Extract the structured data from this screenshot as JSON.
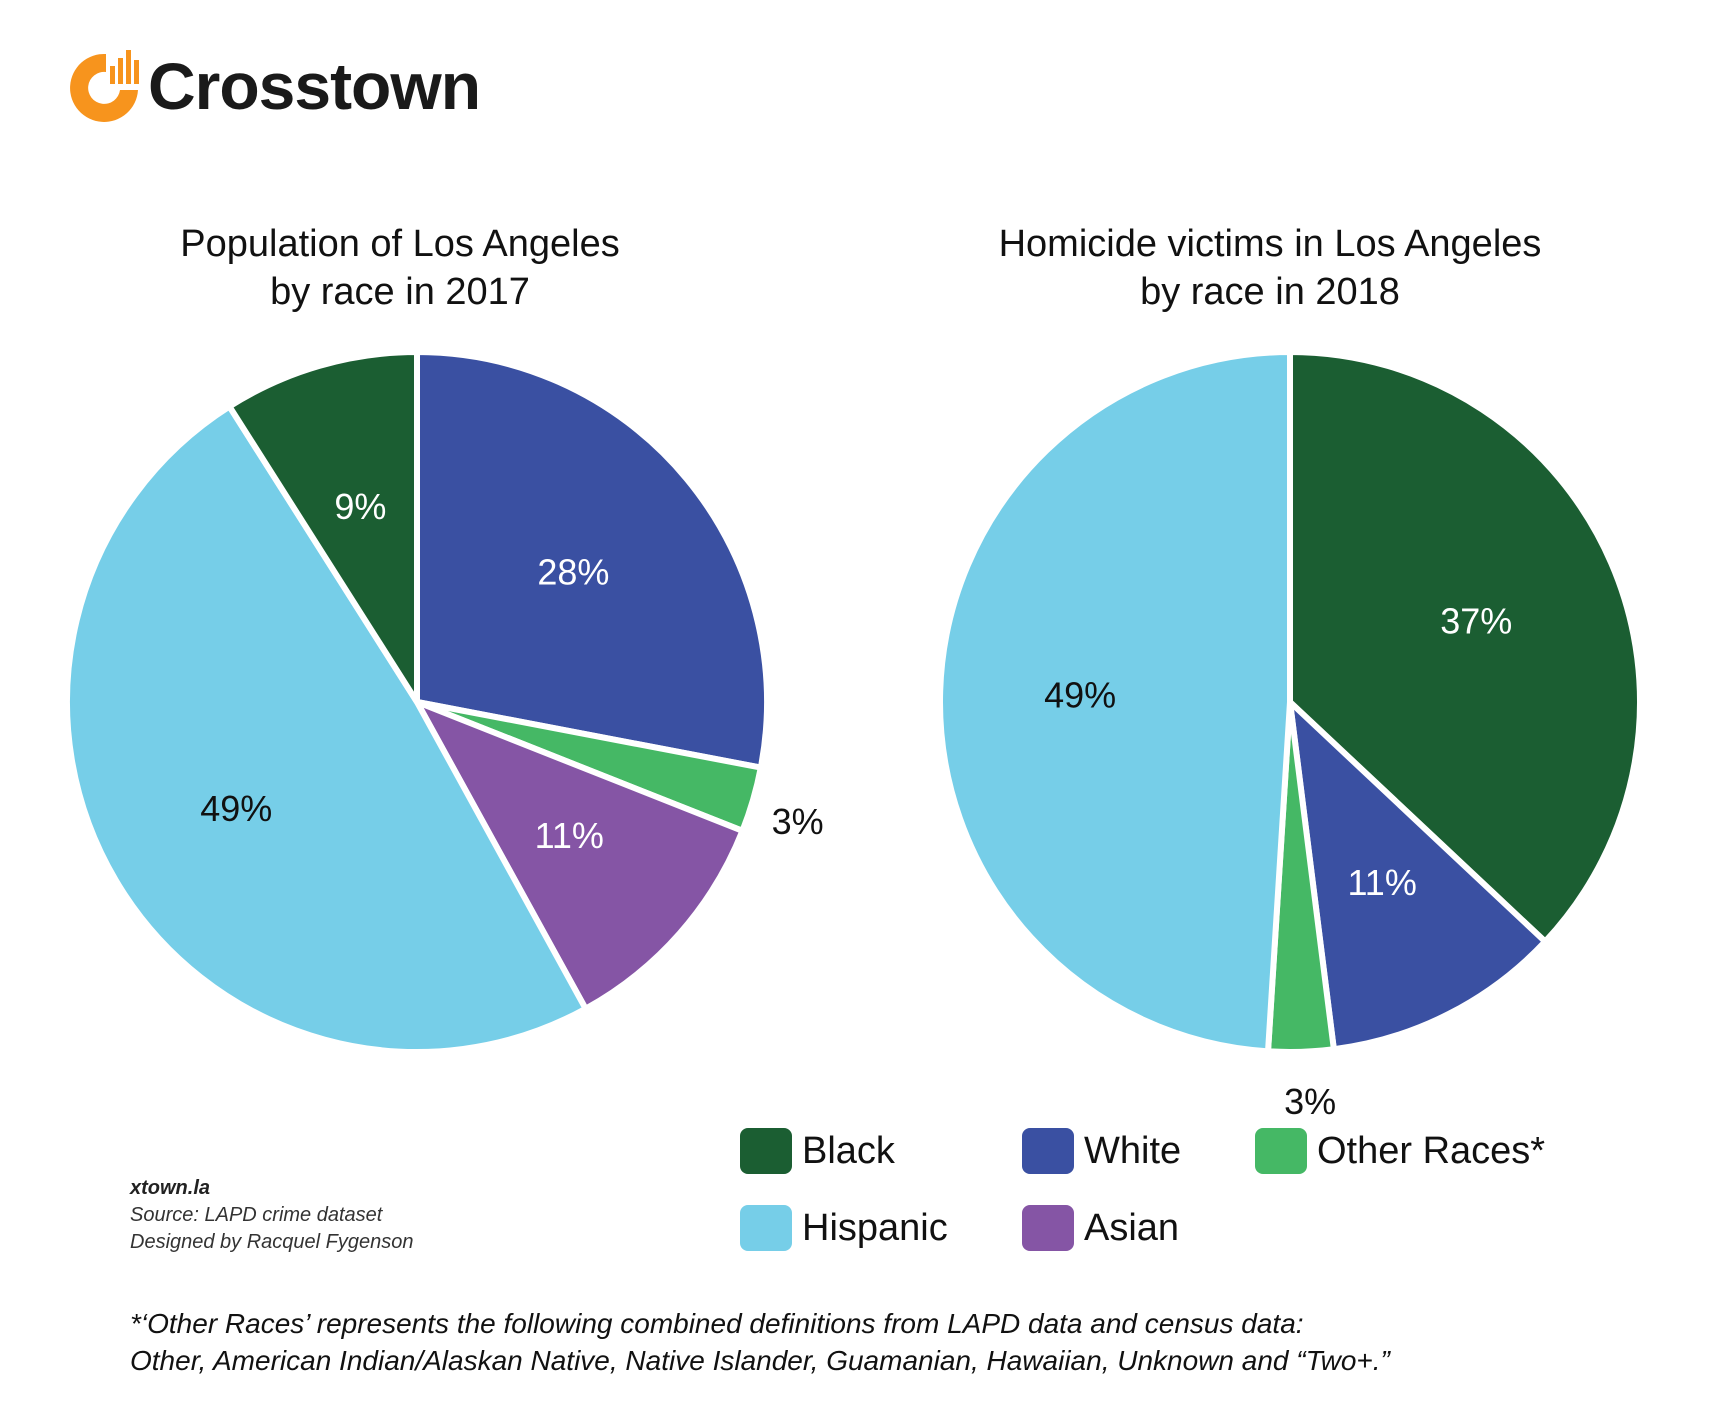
{
  "brand": {
    "name": "Crosstown",
    "colors": {
      "orange": "#F7941D",
      "text": "#1A1A1A"
    }
  },
  "colors": {
    "Black": "#1B5E32",
    "White": "#3A50A2",
    "Other Races*": "#45B865",
    "Hispanic": "#76CEE8",
    "Asian": "#8555A5"
  },
  "chart_data": [
    {
      "type": "pie",
      "title": "Population of Los Angeles by race in 2017",
      "title_lines": [
        "Population of Los Angeles",
        "by race in 2017"
      ],
      "slices": [
        {
          "name": "White",
          "value": 28,
          "label": "28%"
        },
        {
          "name": "Other Races*",
          "value": 3,
          "label": "3%"
        },
        {
          "name": "Asian",
          "value": 11,
          "label": "11%"
        },
        {
          "name": "Hispanic",
          "value": 49,
          "label": "49%"
        },
        {
          "name": "Black",
          "value": 9,
          "label": "9%"
        }
      ]
    },
    {
      "type": "pie",
      "title": "Homicide victims in Los Angeles by race in 2018",
      "title_lines": [
        "Homicide victims in Los Angeles",
        "by race in 2018"
      ],
      "slices": [
        {
          "name": "Black",
          "value": 37,
          "label": "37%"
        },
        {
          "name": "White",
          "value": 11,
          "label": "11%"
        },
        {
          "name": "Other Races*",
          "value": 3,
          "label": "3%"
        },
        {
          "name": "Hispanic",
          "value": 49,
          "label": "49%"
        }
      ]
    }
  ],
  "legend": {
    "placement": "bottom-right",
    "items": [
      "Black",
      "White",
      "Other Races*",
      "Hispanic",
      "Asian"
    ]
  },
  "footer": {
    "site": "xtown.la",
    "source": "Source: LAPD crime dataset",
    "designer": "Designed by Racquel Fygenson"
  },
  "footnote": {
    "line1": "*‘Other Races’ represents the following combined definitions from LAPD data and census data:",
    "line2": "Other, American Indian/Alaskan Native, Native Islander, Guamanian, Hawaiian, Unknown  and “Two+.”"
  }
}
